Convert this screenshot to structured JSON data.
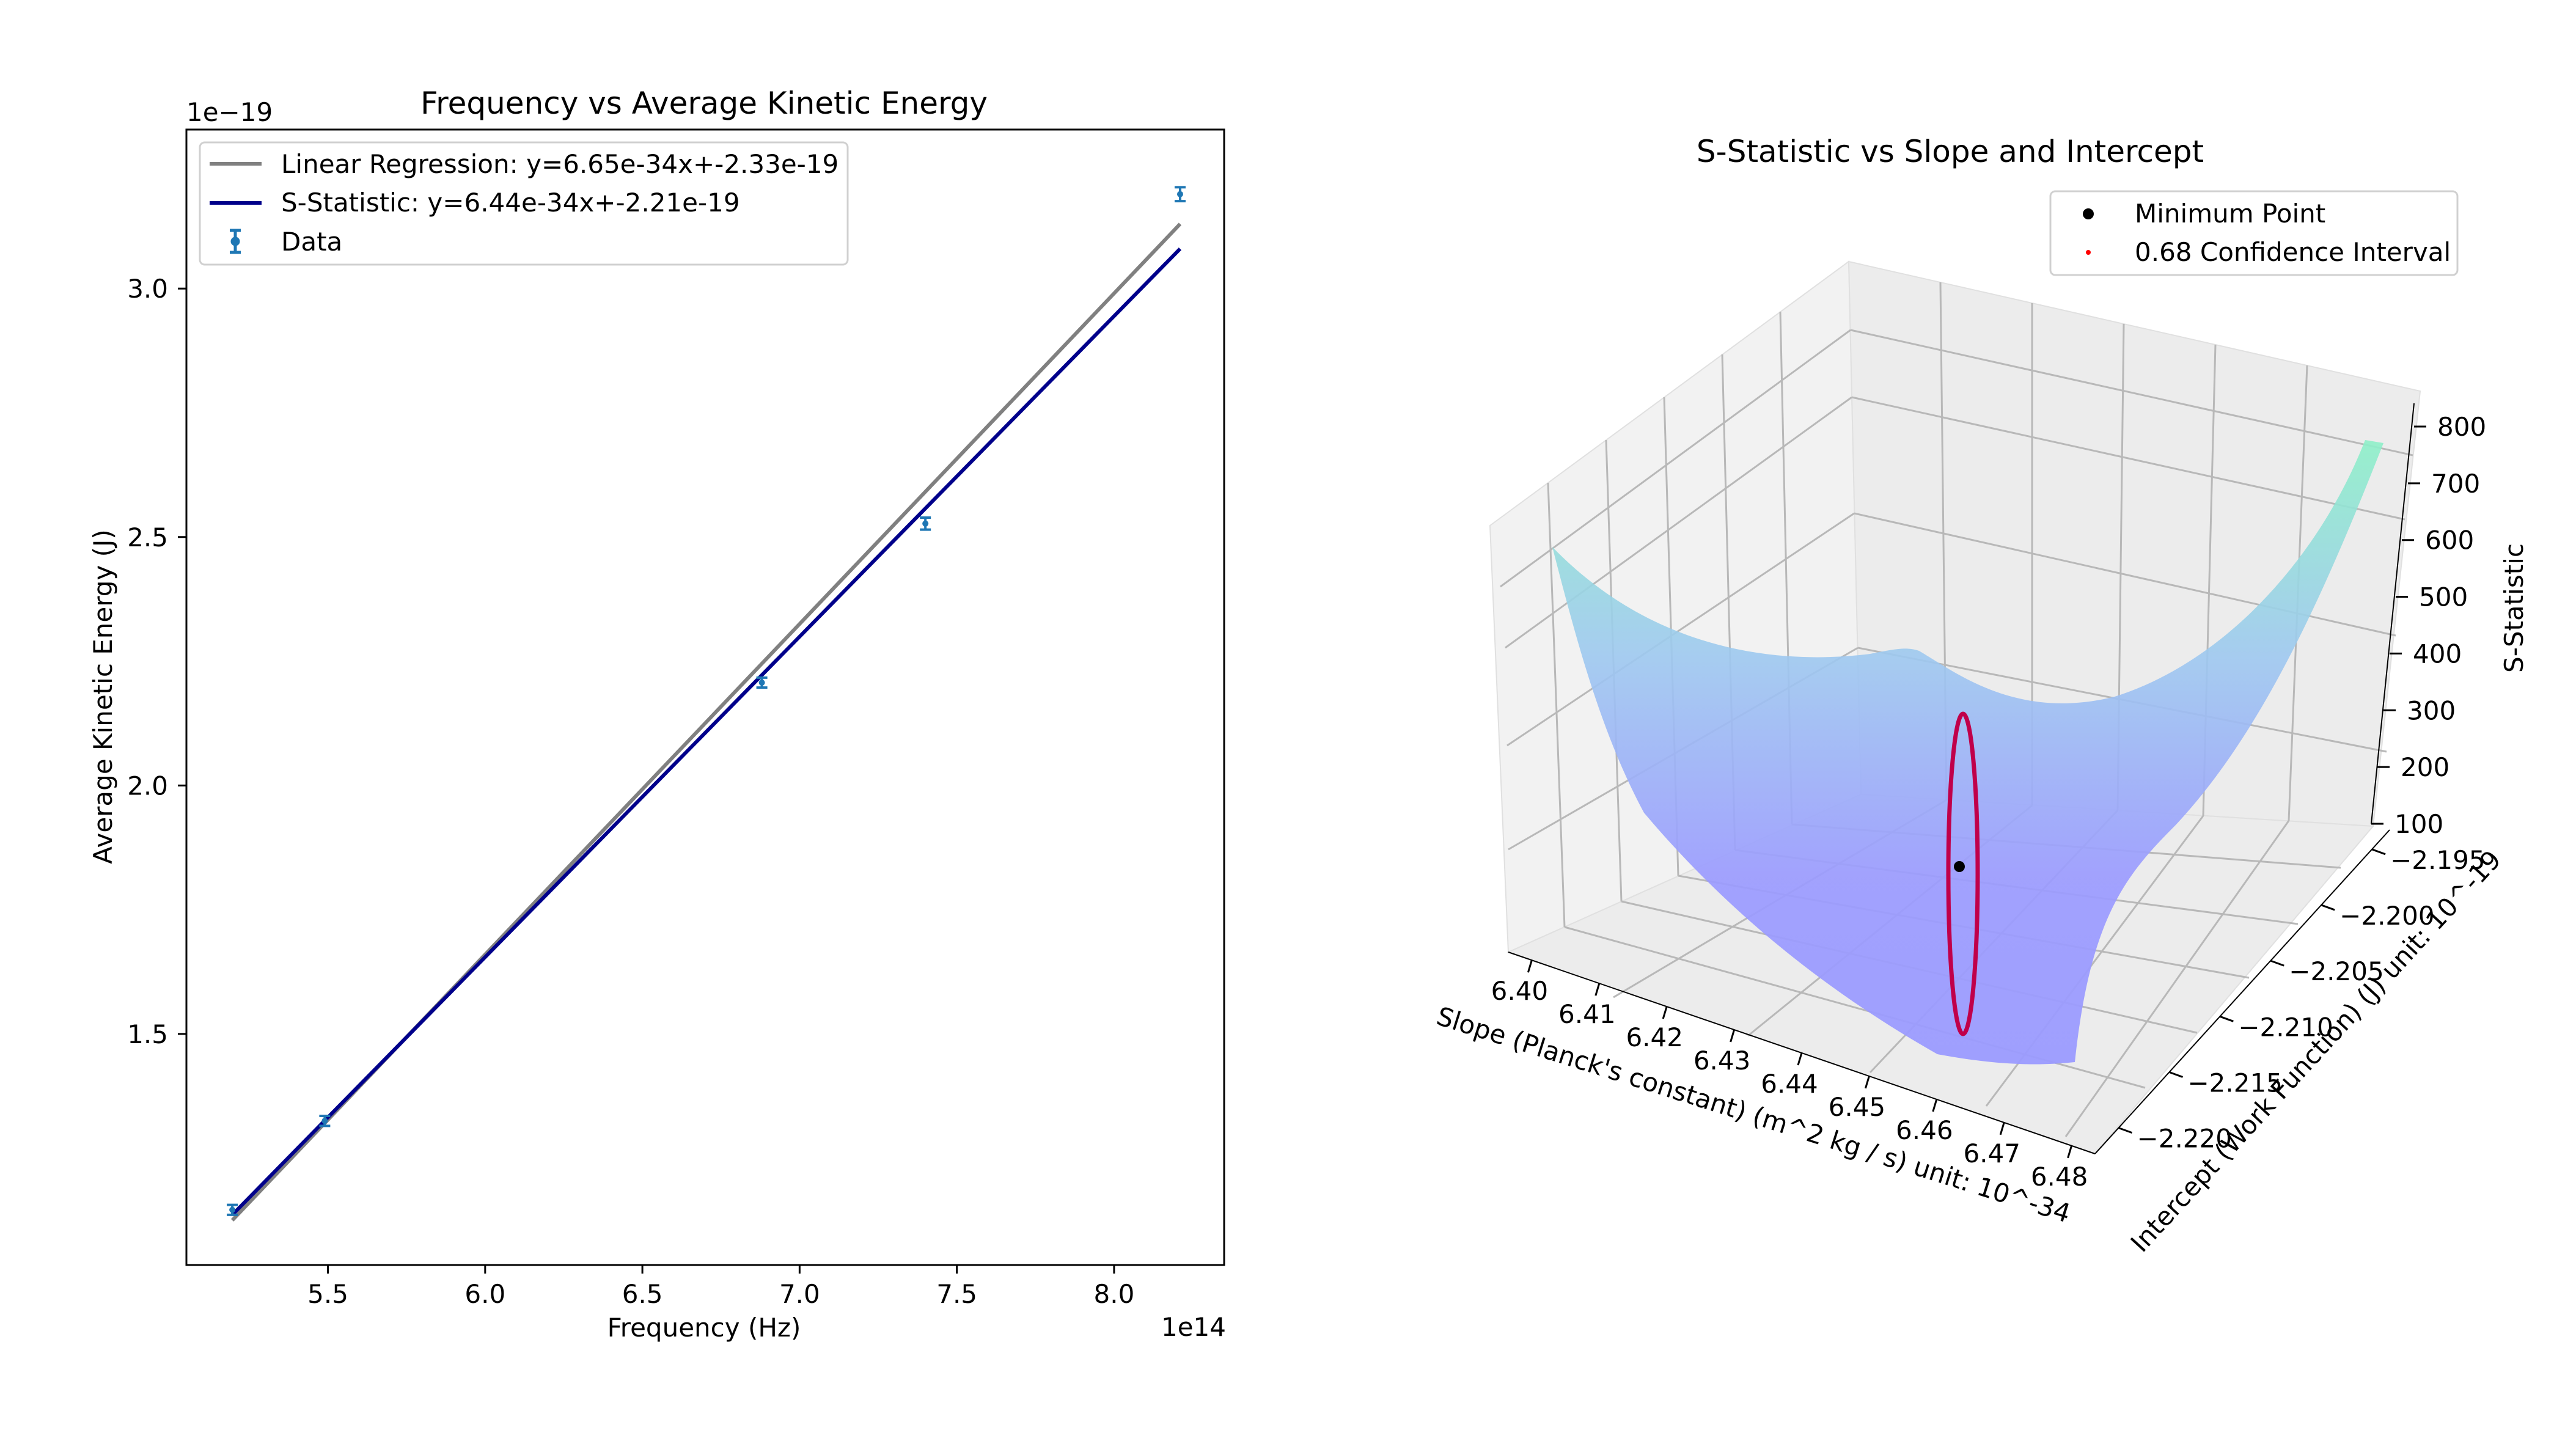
{
  "figure": {
    "background": "#ffffff"
  },
  "chart_data": [
    {
      "type": "scatter",
      "title": "Frequency vs Average Kinetic Energy",
      "xlabel": "Frequency (Hz)",
      "ylabel": "Average Kinetic Energy (J)",
      "x_offset_label": "1e14",
      "y_offset_label": "1e−19",
      "xlim": [
        5.05,
        8.35
      ],
      "ylim": [
        1.035,
        3.32
      ],
      "x_ticks": [
        5.5,
        6.0,
        6.5,
        7.0,
        7.5,
        8.0
      ],
      "x_tick_labels": [
        "5.5",
        "6.0",
        "6.5",
        "7.0",
        "7.5",
        "8.0"
      ],
      "y_ticks": [
        1.5,
        2.0,
        2.5,
        3.0
      ],
      "y_tick_labels": [
        "1.5",
        "2.0",
        "2.5",
        "3.0"
      ],
      "grid": false,
      "legend_position": "upper-left",
      "legend": [
        {
          "label": "Linear Regression: y=6.65e-34x+-2.33e-19",
          "kind": "line",
          "color": "#808080"
        },
        {
          "label": "S-Statistic: y=6.44e-34x+-2.21e-19",
          "kind": "line",
          "color": "#00008b"
        },
        {
          "label": "Data",
          "kind": "errorbar",
          "color": "#1f77b4"
        }
      ],
      "series": [
        {
          "name": "Data",
          "kind": "errorbar",
          "color": "#1f77b4",
          "x": [
            5.196,
            5.49,
            6.88,
            7.4,
            8.21
          ],
          "y": [
            1.146,
            1.325,
            2.207,
            2.527,
            3.19
          ],
          "yerr": [
            0.01,
            0.01,
            0.01,
            0.012,
            0.014
          ]
        },
        {
          "name": "Linear Regression: y=6.65e-34x+-2.33e-19",
          "kind": "line",
          "color": "#808080",
          "x": [
            5.196,
            8.21
          ],
          "y": [
            1.125,
            3.13
          ]
        },
        {
          "name": "S-Statistic: y=6.44e-34x+-2.21e-19",
          "kind": "line",
          "color": "#00008b",
          "x": [
            5.196,
            8.21
          ],
          "y": [
            1.136,
            3.08
          ]
        }
      ]
    },
    {
      "type": "surface3d",
      "title": "S-Statistic vs Slope and Intercept",
      "xlabel": "Slope (Planck's constant) (m^2 kg / s) unit: 10^-34",
      "ylabel": "Intercept (Work Function) (J) unit: 10^-19",
      "zlabel": "S-Statistic",
      "x_tick_labels": [
        "6.40",
        "6.41",
        "6.42",
        "6.43",
        "6.44",
        "6.45",
        "6.46",
        "6.47",
        "6.48"
      ],
      "y_tick_labels": [
        "−2.220",
        "−2.215",
        "−2.210",
        "−2.205",
        "−2.200",
        "−2.195"
      ],
      "z_tick_labels": [
        "100",
        "200",
        "300",
        "400",
        "500",
        "600",
        "700",
        "800"
      ],
      "xlim": [
        6.395,
        6.485
      ],
      "ylim": [
        -2.2225,
        -2.1925
      ],
      "zlim": [
        80,
        820
      ],
      "grid": true,
      "colormap": "cool-translucent",
      "surface_colors": {
        "low": "#9b9bff",
        "high": "#8ef0c8"
      },
      "legend_position": "upper-right",
      "legend": [
        {
          "label": "Minimum Point",
          "kind": "marker",
          "color": "#000000"
        },
        {
          "label": "0.68 Confidence Interval",
          "kind": "dot",
          "color": "#ff0000"
        }
      ],
      "minimum_point": {
        "slope": 6.44,
        "intercept": -2.21,
        "s": 50
      },
      "confidence_interval": {
        "level": 0.68,
        "color": "#c0004a"
      }
    }
  ]
}
